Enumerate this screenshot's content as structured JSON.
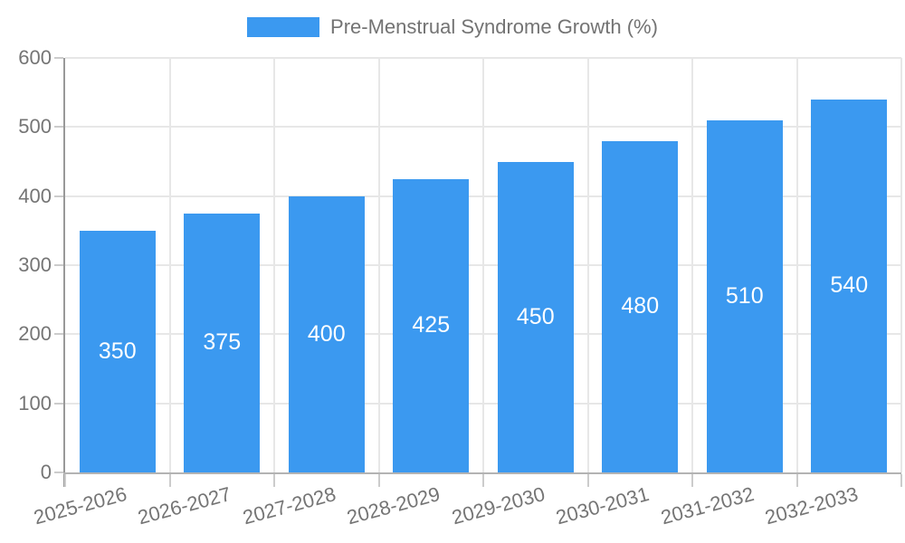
{
  "chart_data": {
    "type": "bar",
    "title": "Pre-Menstrual Syndrome Growth (%)",
    "categories": [
      "2025-2026",
      "2026-2027",
      "2027-2028",
      "2028-2029",
      "2029-2030",
      "2030-2031",
      "2031-2032",
      "2032-2033"
    ],
    "values": [
      350,
      375,
      400,
      425,
      450,
      480,
      510,
      540
    ],
    "xlabel": "",
    "ylabel": "",
    "ylim": [
      0,
      600
    ],
    "yticks": [
      0,
      100,
      200,
      300,
      400,
      500,
      600
    ],
    "grid": true,
    "legend_position": "top-center",
    "xticklabel_rotation_deg": -15,
    "value_labels": "inside-center",
    "colors": {
      "bar": "#3B99F0",
      "value_label": "#FFFFFF",
      "axis_text": "#757575",
      "legend_text": "#737373",
      "gridline": "#E7E7E7",
      "y_axis_line": "#999999",
      "x_axis_line": "#B3B3B3",
      "tick": "#CCCCCC",
      "background": "#FFFFFF"
    }
  }
}
